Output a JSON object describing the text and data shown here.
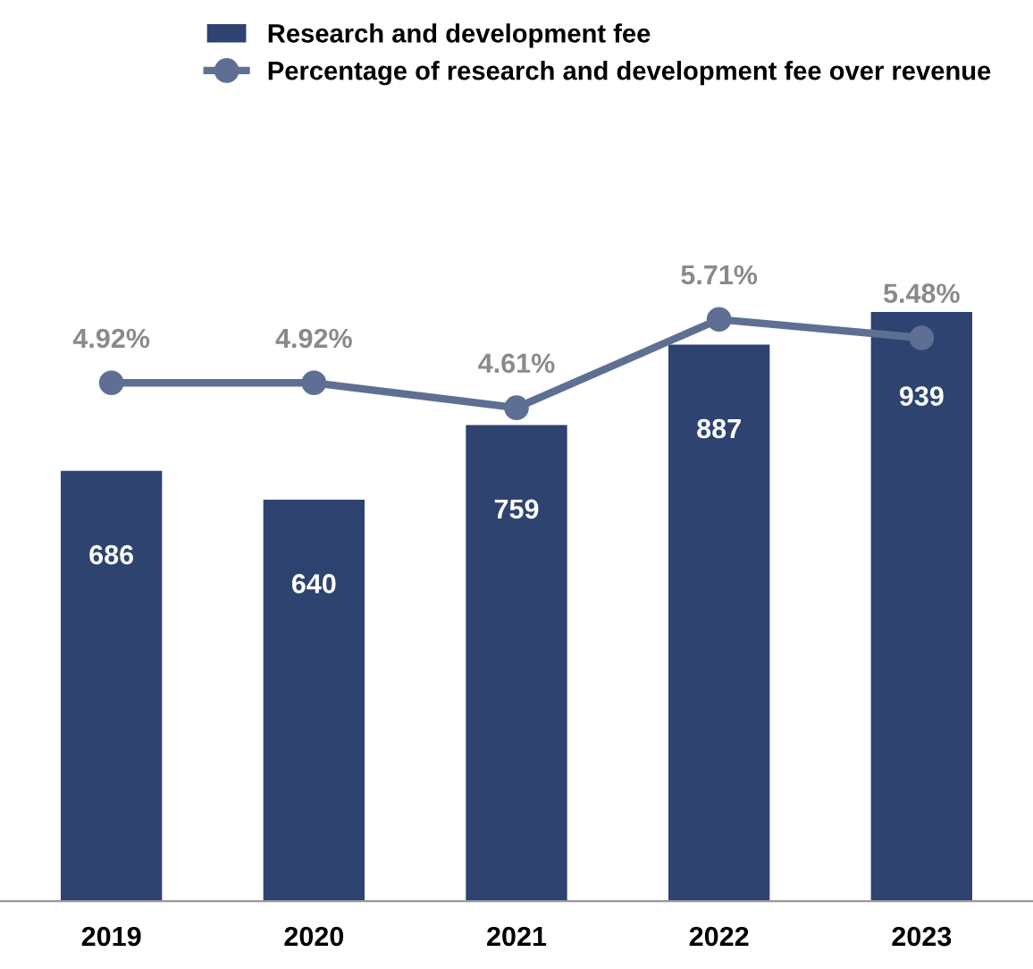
{
  "chart_data": {
    "type": "bar",
    "categories": [
      "2019",
      "2020",
      "2021",
      "2022",
      "2023"
    ],
    "series": [
      {
        "name": "Research and development fee",
        "color": "#2e4370",
        "values": [
          686,
          640,
          759,
          887,
          939
        ],
        "data_labels": true
      },
      {
        "name": "Percentage of research and development fee over revenue",
        "type": "line",
        "axis": "y2",
        "color": "#5f6f94",
        "marker": "circle",
        "line_style": "solid",
        "values": [
          4.92,
          4.92,
          4.61,
          5.71,
          5.48
        ],
        "value_labels": [
          "4.92%",
          "4.92%",
          "4.61%",
          "5.71%",
          "5.48%"
        ]
      }
    ],
    "tick_labels": "x",
    "grid": false,
    "legend": "top"
  }
}
